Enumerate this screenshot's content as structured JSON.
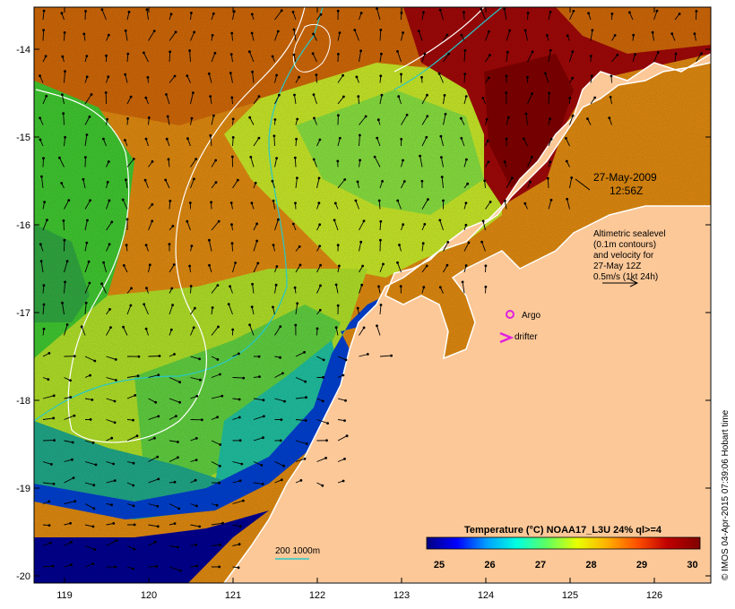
{
  "map": {
    "date": "27-May-2009",
    "time": "12:56Z",
    "altimetry_lines": [
      "Altimetric sealevel",
      "(0.1m contours)",
      "and velocity for",
      "27-May 12Z",
      "0.5m/s (1kt 24h)"
    ],
    "legend_argo": "Argo",
    "legend_drifter": "drifter",
    "depth_legend": "200  1000m",
    "colorbar_title": "Temperature (°C) NOAA17_L3U 24% ql>=4",
    "colorbar_ticks": [
      "25",
      "26",
      "27",
      "28",
      "29",
      "30"
    ],
    "credit": "© IMOS 04-Apr-2015 07:39:06 Hobart time",
    "x_ticks": [
      "119",
      "120",
      "121",
      "122",
      "123",
      "124",
      "125",
      "126"
    ],
    "y_ticks": [
      "-14",
      "-15",
      "-16",
      "-17",
      "-18",
      "-19",
      "-20"
    ],
    "colors": {
      "land": "#fcc898",
      "temp_ramp": [
        "#000080",
        "#0000ff",
        "#00a0ff",
        "#00ffe0",
        "#60ff60",
        "#e8ff00",
        "#ffb000",
        "#ff5000",
        "#c00000",
        "#800000"
      ],
      "contour_white": "#ffffff",
      "bathy_cyan": "#28c8c8",
      "argo_marker": "#e020e0"
    }
  }
}
